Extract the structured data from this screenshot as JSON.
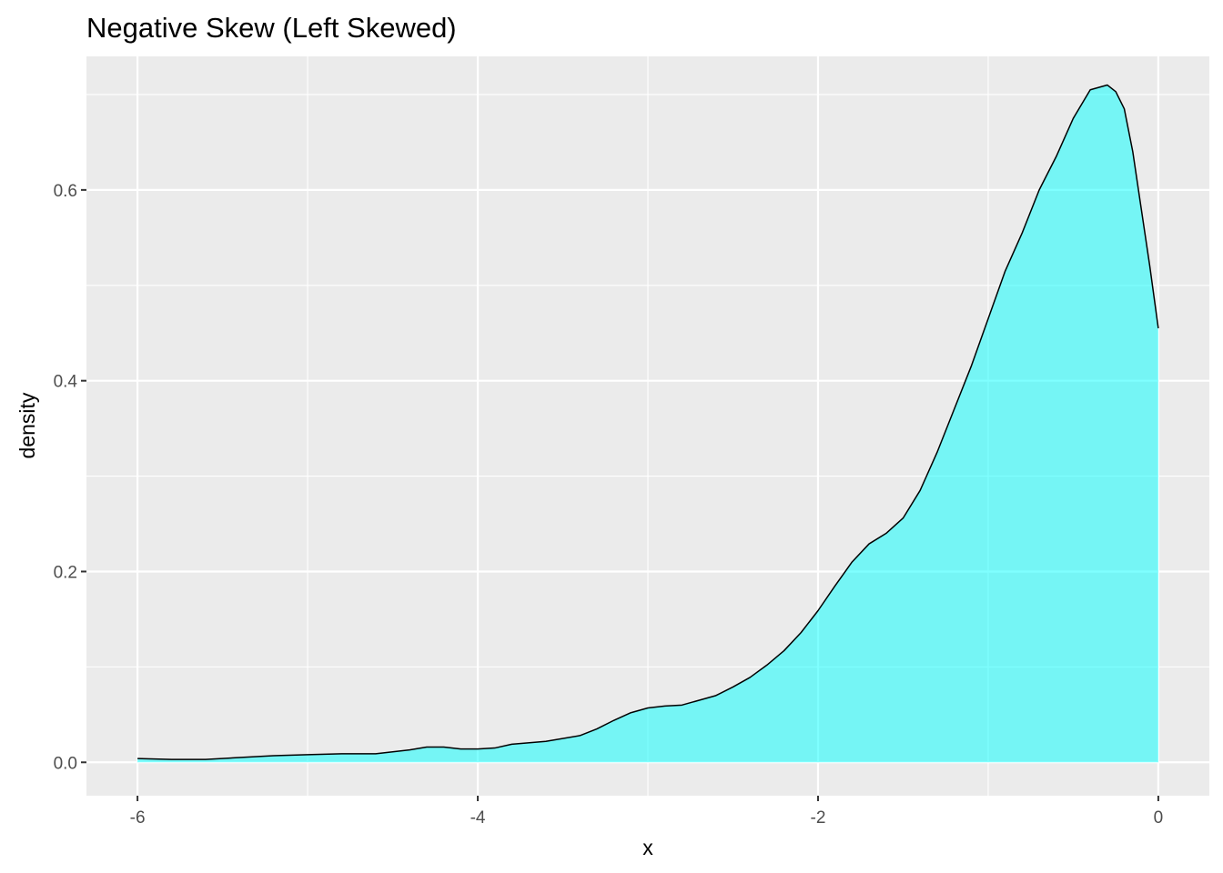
{
  "chart_data": {
    "type": "area",
    "title": "Negative Skew (Left Skewed)",
    "xlabel": "x",
    "ylabel": "density",
    "xlim": [
      -6.3,
      0.3
    ],
    "ylim": [
      -0.035,
      0.74
    ],
    "x_ticks": [
      -6,
      -4,
      -2,
      0
    ],
    "x_tick_labels": [
      "-6",
      "-4",
      "-2",
      "0"
    ],
    "y_ticks": [
      0.0,
      0.2,
      0.4,
      0.6
    ],
    "y_tick_labels": [
      "0.0",
      "0.2",
      "0.4",
      "0.6"
    ],
    "grid": true,
    "fill_color": "#00FFFF",
    "fill_opacity": 0.5,
    "line_color": "#000000",
    "panel_background": "#EBEBEB",
    "grid_color": "#FFFFFF",
    "series": [
      {
        "x": [
          -6.0,
          -5.8,
          -5.6,
          -5.4,
          -5.2,
          -5.0,
          -4.8,
          -4.6,
          -4.4,
          -4.3,
          -4.2,
          -4.1,
          -4.0,
          -3.9,
          -3.8,
          -3.6,
          -3.4,
          -3.3,
          -3.2,
          -3.1,
          -3.0,
          -2.9,
          -2.8,
          -2.6,
          -2.5,
          -2.4,
          -2.3,
          -2.2,
          -2.1,
          -2.0,
          -1.9,
          -1.8,
          -1.7,
          -1.6,
          -1.5,
          -1.4,
          -1.3,
          -1.2,
          -1.1,
          -1.0,
          -0.9,
          -0.8,
          -0.7,
          -0.6,
          -0.5,
          -0.4,
          -0.3,
          -0.25,
          -0.2,
          -0.15,
          -0.1,
          -0.05,
          0.0
        ],
        "y": [
          0.004,
          0.003,
          0.003,
          0.005,
          0.007,
          0.008,
          0.009,
          0.009,
          0.013,
          0.016,
          0.016,
          0.014,
          0.014,
          0.015,
          0.019,
          0.022,
          0.028,
          0.035,
          0.044,
          0.052,
          0.057,
          0.059,
          0.06,
          0.07,
          0.079,
          0.089,
          0.102,
          0.117,
          0.136,
          0.159,
          0.185,
          0.21,
          0.229,
          0.24,
          0.256,
          0.285,
          0.325,
          0.37,
          0.415,
          0.465,
          0.515,
          0.555,
          0.6,
          0.635,
          0.675,
          0.705,
          0.71,
          0.703,
          0.685,
          0.64,
          0.58,
          0.52,
          0.455
        ]
      }
    ]
  }
}
